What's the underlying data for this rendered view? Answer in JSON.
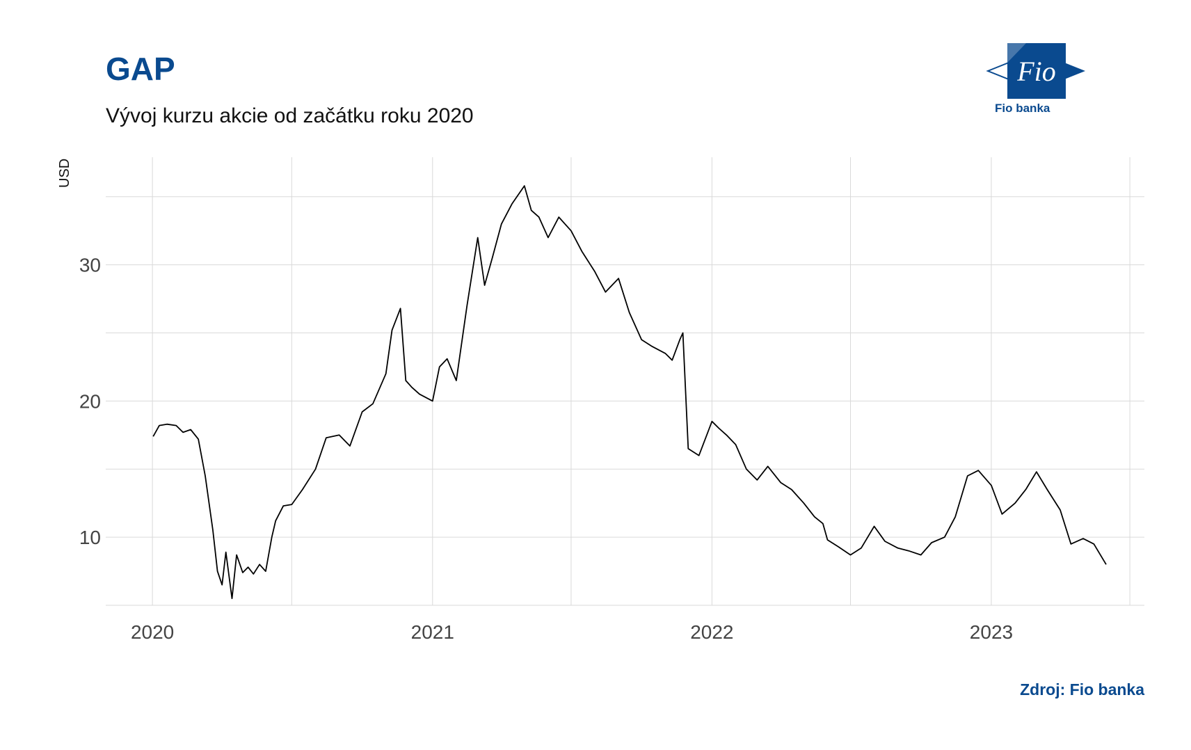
{
  "title": "GAP",
  "subtitle": "Vývoj kurzu akcie od začátku roku 2020",
  "source": "Zdroj: Fio banka",
  "logo": {
    "mark": "Fio",
    "caption": "Fio banka"
  },
  "colors": {
    "brand": "#0a4a8f",
    "line": "#000000",
    "grid": "#d9d9d9"
  },
  "chart_data": {
    "type": "line",
    "title": "GAP",
    "subtitle": "Vývoj kurzu akcie od začátku roku 2020",
    "ylabel": "USD",
    "xlabel": "",
    "x_tick_labels": [
      "2020",
      "2021",
      "2022",
      "2023"
    ],
    "y_tick_labels": [
      "10",
      "20",
      "30"
    ],
    "ylim": [
      5,
      37.9
    ],
    "xlim": [
      "2019-11-01",
      "2023-07-20"
    ],
    "grid": true,
    "series": [
      {
        "x": [
          "2020-01-02",
          "2020-01-10",
          "2020-01-20",
          "2020-02-01",
          "2020-02-10",
          "2020-02-20",
          "2020-03-01",
          "2020-03-10",
          "2020-03-20",
          "2020-03-26",
          "2020-04-01",
          "2020-04-06",
          "2020-04-14",
          "2020-04-20",
          "2020-04-28",
          "2020-05-05",
          "2020-05-12",
          "2020-05-20",
          "2020-05-28",
          "2020-06-05",
          "2020-06-10",
          "2020-06-20",
          "2020-07-01",
          "2020-07-15",
          "2020-08-01",
          "2020-08-15",
          "2020-09-01",
          "2020-09-15",
          "2020-10-01",
          "2020-10-15",
          "2020-11-01",
          "2020-11-09",
          "2020-11-20",
          "2020-11-27",
          "2020-12-05",
          "2020-12-15",
          "2021-01-01",
          "2021-01-10",
          "2021-01-20",
          "2021-02-01",
          "2021-02-15",
          "2021-03-01",
          "2021-03-10",
          "2021-03-20",
          "2021-04-01",
          "2021-04-15",
          "2021-05-01",
          "2021-05-10",
          "2021-05-20",
          "2021-06-01",
          "2021-06-15",
          "2021-07-01",
          "2021-07-15",
          "2021-08-01",
          "2021-08-15",
          "2021-09-01",
          "2021-09-15",
          "2021-10-01",
          "2021-10-15",
          "2021-11-01",
          "2021-11-10",
          "2021-11-20",
          "2021-11-24",
          "2021-12-01",
          "2021-12-15",
          "2022-01-01",
          "2022-01-10",
          "2022-01-20",
          "2022-02-01",
          "2022-02-15",
          "2022-03-01",
          "2022-03-15",
          "2022-04-01",
          "2022-04-15",
          "2022-05-01",
          "2022-05-15",
          "2022-05-26",
          "2022-06-01",
          "2022-06-15",
          "2022-07-01",
          "2022-07-15",
          "2022-08-01",
          "2022-08-15",
          "2022-09-01",
          "2022-09-15",
          "2022-10-01",
          "2022-10-15",
          "2022-11-01",
          "2022-11-15",
          "2022-12-01",
          "2022-12-15",
          "2023-01-01",
          "2023-01-15",
          "2023-02-01",
          "2023-02-15",
          "2023-03-01",
          "2023-03-15",
          "2023-04-01",
          "2023-04-15",
          "2023-05-01",
          "2023-05-15",
          "2023-05-31"
        ],
        "values": [
          17.4,
          18.2,
          18.3,
          18.2,
          17.7,
          17.9,
          17.2,
          14.5,
          10.5,
          7.5,
          6.5,
          8.9,
          5.5,
          8.7,
          7.4,
          7.8,
          7.3,
          8.0,
          7.5,
          10.0,
          11.2,
          12.3,
          12.4,
          13.5,
          15.0,
          17.3,
          17.5,
          16.7,
          19.2,
          19.8,
          22.0,
          25.2,
          26.8,
          21.5,
          21.0,
          20.5,
          20.0,
          22.5,
          23.1,
          21.5,
          27.0,
          32.0,
          28.5,
          30.5,
          33.0,
          34.5,
          35.8,
          34.0,
          33.5,
          32.0,
          33.5,
          32.5,
          31.0,
          29.5,
          28.0,
          29.0,
          26.5,
          24.5,
          24.0,
          23.5,
          23.0,
          24.5,
          25.0,
          16.5,
          16.0,
          18.5,
          18.0,
          17.5,
          16.8,
          15.0,
          14.2,
          15.2,
          14.0,
          13.5,
          12.5,
          11.5,
          11.0,
          9.8,
          9.3,
          8.7,
          9.2,
          10.8,
          9.7,
          9.2,
          9.0,
          8.7,
          9.6,
          10.0,
          11.5,
          14.5,
          14.9,
          13.8,
          11.7,
          12.5,
          13.5,
          14.8,
          13.5,
          12.0,
          9.5,
          9.9,
          9.5,
          8.0
        ]
      }
    ]
  }
}
